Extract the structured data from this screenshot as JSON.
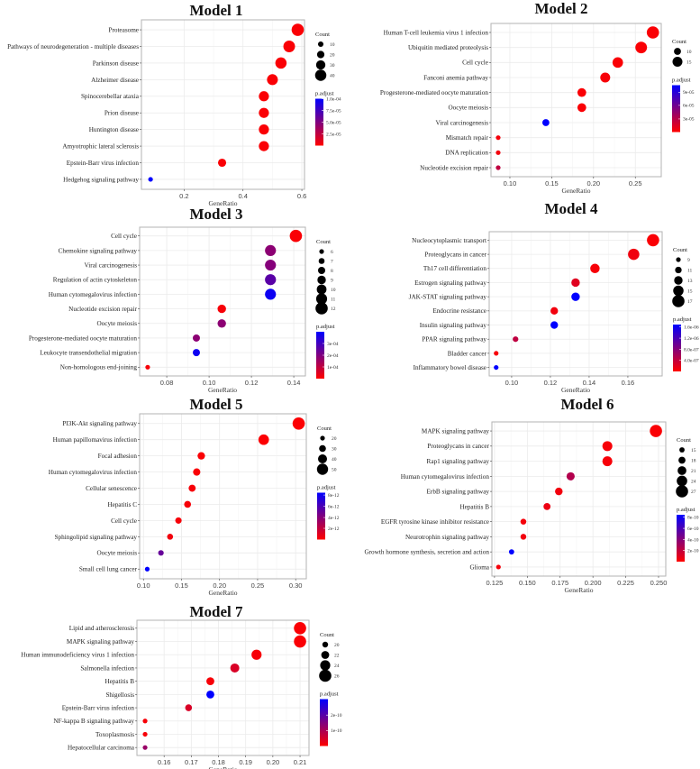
{
  "colors": {
    "low_padj": "#ff0000",
    "high_padj": "#0000ff",
    "grid": "#ebebeb",
    "border": "#b3b3b3"
  },
  "chart_data": [
    {
      "type": "scatter",
      "title": "Model 1",
      "xlabel": "GeneRatio",
      "xlim": [
        0.055,
        0.609
      ],
      "xticks": [
        0.2,
        0.4,
        0.6
      ],
      "xtick_labels": [
        "0.2",
        "0.4",
        "0.6"
      ],
      "size_legend": {
        "title": "Count",
        "values": [
          10,
          20,
          30,
          40
        ],
        "labels": [
          "10",
          "20",
          "30",
          "40"
        ]
      },
      "color_legend": {
        "title": "p.adjust",
        "labels": [
          "1.0e-04",
          "7.5e-05",
          "5.0e-05",
          "2.5e-05"
        ],
        "positions": [
          1.0,
          0.75,
          0.5,
          0.25
        ]
      },
      "count_range": [
        6,
        45
      ],
      "terms": [
        "Proteasome",
        "Pathways of neurodegeneration - multiple diseases",
        "Parkinson disease",
        "Alzheimer disease",
        "Spinocerebellar ataxia",
        "Prion disease",
        "Huntington disease",
        "Amyotrophic lateral sclerosis",
        "Epstein-Barr virus infection",
        "Hedgehog signaling pathway"
      ],
      "gene_ratio": [
        0.586,
        0.557,
        0.529,
        0.5,
        0.471,
        0.471,
        0.471,
        0.471,
        0.329,
        0.086
      ],
      "count": [
        45,
        42,
        40,
        38,
        34,
        34,
        34,
        34,
        24,
        6
      ],
      "padj_scaled": [
        0.02,
        0.02,
        0.02,
        0.02,
        0.02,
        0.02,
        0.02,
        0.02,
        0.02,
        1.0
      ]
    },
    {
      "type": "scatter",
      "title": "Model 2",
      "xlabel": "GeneRatio",
      "xlim": [
        0.0774,
        0.281
      ],
      "xticks": [
        0.1,
        0.15,
        0.2,
        0.25
      ],
      "xtick_labels": [
        "0.10",
        "0.15",
        "0.20",
        "0.25"
      ],
      "size_legend": {
        "title": "Count",
        "values": [
          10,
          15
        ],
        "labels": [
          "10",
          "15"
        ]
      },
      "color_legend": {
        "title": "p.adjust",
        "labels": [
          "9e-05",
          "6e-05",
          "3e-05"
        ],
        "positions": [
          0.85,
          0.57,
          0.28
        ]
      },
      "count_range": [
        6,
        19
      ],
      "terms": [
        "Human T-cell leukemia virus 1 infection",
        "Ubiquitin mediated proteolysis",
        "Cell cycle",
        "Fanconi anemia pathway",
        "Progesterone-mediated oocyte maturation",
        "Oocyte meiosis",
        "Viral carcinogenesis",
        "Mismatch repair",
        "DNA replication",
        "Nucleotide excision repair"
      ],
      "gene_ratio": [
        0.271,
        0.257,
        0.229,
        0.214,
        0.186,
        0.186,
        0.143,
        0.086,
        0.086,
        0.086
      ],
      "count": [
        19,
        18,
        16,
        15,
        13,
        13,
        10,
        6,
        6,
        6
      ],
      "padj_scaled": [
        0.02,
        0.02,
        0.02,
        0.03,
        0.02,
        0.02,
        1.0,
        0.04,
        0.05,
        0.25
      ]
    },
    {
      "type": "scatter",
      "title": "Model 3",
      "xlabel": "GeneRatio",
      "xlim": [
        0.0672,
        0.1455
      ],
      "xticks": [
        0.08,
        0.1,
        0.12,
        0.14
      ],
      "xtick_labels": [
        "0.08",
        "0.10",
        "0.12",
        "0.14"
      ],
      "size_legend": {
        "title": "Count",
        "values": [
          6,
          7,
          8,
          9,
          10,
          11,
          12
        ],
        "labels": [
          "6",
          "7",
          "8",
          "9",
          "10",
          "11",
          "12"
        ]
      },
      "color_legend": {
        "title": "p.adjust",
        "labels": [
          "3e-04",
          "2e-04",
          "1e-04"
        ],
        "positions": [
          0.75,
          0.5,
          0.25
        ]
      },
      "count_range": [
        6,
        12
      ],
      "terms": [
        "Cell cycle",
        "Chemokine signaling pathway",
        "Viral carcinogenesis",
        "Regulation of actin cytoskeleton",
        "Human cytomegalovirus infection",
        "Nucleotide excision repair",
        "Oocyte meiosis",
        "Progesterone-mediated oocyte maturation",
        "Leukocyte transendothelial migration",
        "Non-homologous end-joining"
      ],
      "gene_ratio": [
        0.141,
        0.129,
        0.129,
        0.129,
        0.129,
        0.106,
        0.106,
        0.094,
        0.094,
        0.071
      ],
      "count": [
        12,
        11,
        11,
        11,
        11,
        9,
        9,
        8,
        8,
        6
      ],
      "padj_scaled": [
        0.02,
        0.45,
        0.48,
        0.65,
        0.95,
        0.03,
        0.45,
        0.45,
        0.95,
        0.03
      ]
    },
    {
      "type": "scatter",
      "title": "Model 4",
      "xlabel": "GeneRatio",
      "xlim": [
        0.0884,
        0.1777
      ],
      "xticks": [
        0.1,
        0.12,
        0.14,
        0.16
      ],
      "xtick_labels": [
        "0.10",
        "0.12",
        "0.14",
        "0.16"
      ],
      "size_legend": {
        "title": "Count",
        "values": [
          9,
          11,
          13,
          15,
          17
        ],
        "labels": [
          "9",
          "11",
          "13",
          "15",
          "17"
        ]
      },
      "color_legend": {
        "title": "p.adjust",
        "labels": [
          "1.6e-06",
          "1.2e-06",
          "8.0e-07",
          "4.0e-07"
        ],
        "positions": [
          0.95,
          0.71,
          0.47,
          0.24
        ]
      },
      "count_range": [
        9,
        17
      ],
      "terms": [
        "Nucleocytoplasmic transport",
        "Proteoglycans in cancer",
        "Th17 cell differentiation",
        "Estrogen signaling pathway",
        "JAK-STAT signaling pathway",
        "Endocrine resistance",
        "Insulin signaling pathway",
        "PPAR signaling pathway",
        "Bladder cancer",
        "Inflammatory bowel disease"
      ],
      "gene_ratio": [
        0.173,
        0.163,
        0.143,
        0.133,
        0.133,
        0.122,
        0.122,
        0.102,
        0.092,
        0.092
      ],
      "count": [
        17,
        16,
        14,
        13,
        13,
        12,
        12,
        10,
        9,
        9
      ],
      "padj_scaled": [
        0.02,
        0.06,
        0.03,
        0.12,
        1.0,
        0.05,
        1.0,
        0.25,
        0.03,
        1.0
      ]
    },
    {
      "type": "scatter",
      "title": "Model 5",
      "xlabel": "GeneRatio",
      "xlim": [
        0.095,
        0.314
      ],
      "xticks": [
        0.1,
        0.15,
        0.2,
        0.25,
        0.3
      ],
      "xtick_labels": [
        "0.10",
        "0.15",
        "0.20",
        "0.25",
        "0.30"
      ],
      "size_legend": {
        "title": "Count",
        "values": [
          20,
          30,
          40,
          50
        ],
        "labels": [
          "20",
          "30",
          "40",
          "50"
        ]
      },
      "color_legend": {
        "title": "p.adjust",
        "labels": [
          "8e-12",
          "6e-12",
          "4e-12",
          "2e-12"
        ],
        "positions": [
          0.95,
          0.71,
          0.47,
          0.24
        ]
      },
      "count_range": [
        20,
        55
      ],
      "terms": [
        "PI3K-Akt signaling pathway",
        "Human papillomavirus infection",
        "Focal adhesion",
        "Human cytomegalovirus infection",
        "Cellular senescence",
        "Hepatitis C",
        "Cell cycle",
        "Sphingolipid signaling pathway",
        "Oocyte meiosis",
        "Small cell lung cancer"
      ],
      "gene_ratio": [
        0.304,
        0.258,
        0.176,
        0.17,
        0.164,
        0.158,
        0.146,
        0.135,
        0.123,
        0.105
      ],
      "count": [
        55,
        47,
        33,
        32,
        31,
        30,
        28,
        26,
        24,
        20
      ],
      "padj_scaled": [
        0.01,
        0.01,
        0.02,
        0.02,
        0.03,
        0.03,
        0.03,
        0.05,
        0.6,
        1.0
      ]
    },
    {
      "type": "scatter",
      "title": "Model 6",
      "xlabel": "GeneRatio",
      "xlim": [
        0.123,
        0.2555
      ],
      "xticks": [
        0.125,
        0.15,
        0.175,
        0.2,
        0.225,
        0.25
      ],
      "xtick_labels": [
        "0.125",
        "0.150",
        "0.175",
        "0.200",
        "0.225",
        "0.250"
      ],
      "size_legend": {
        "title": "Count",
        "values": [
          15,
          18,
          21,
          24,
          27
        ],
        "labels": [
          "15",
          "18",
          "21",
          "24",
          "27"
        ]
      },
      "color_legend": {
        "title": "p.adjust",
        "labels": [
          "8e-10",
          "6e-10",
          "4e-10",
          "2e-10"
        ],
        "positions": [
          0.95,
          0.71,
          0.47,
          0.24
        ]
      },
      "count_range": [
        14,
        27
      ],
      "terms": [
        "MAPK signaling pathway",
        "Proteoglycans in cancer",
        "Rap1 signaling pathway",
        "Human cytomegalovirus infection",
        "ErbB signaling pathway",
        "Hepatitis B",
        "EGFR tyrosine kinase inhibitor resistance",
        "Neurotrophin signaling pathway",
        "Growth hormone synthesis, secretion and action",
        "Glioma"
      ],
      "gene_ratio": [
        0.248,
        0.211,
        0.211,
        0.183,
        0.174,
        0.165,
        0.147,
        0.147,
        0.138,
        0.128
      ],
      "count": [
        27,
        23,
        23,
        20,
        19,
        18,
        16,
        16,
        15,
        14
      ],
      "padj_scaled": [
        0.02,
        0.03,
        0.03,
        0.3,
        0.05,
        0.07,
        0.04,
        0.05,
        1.0,
        0.04
      ]
    },
    {
      "type": "scatter",
      "title": "Model 7",
      "xlabel": "GeneRatio",
      "xlim": [
        0.15,
        0.2133
      ],
      "xticks": [
        0.16,
        0.17,
        0.18,
        0.19,
        0.2,
        0.21
      ],
      "xtick_labels": [
        "0.16",
        "0.17",
        "0.18",
        "0.19",
        "0.20",
        "0.21"
      ],
      "size_legend": {
        "title": "Count",
        "values": [
          20,
          22,
          24,
          26
        ],
        "labels": [
          "20",
          "22",
          "24",
          "26"
        ]
      },
      "color_legend": {
        "title": "p.adjust",
        "labels": [
          "2e-10",
          "1e-10"
        ],
        "positions": [
          0.66,
          0.33
        ]
      },
      "count_range": [
        19,
        26
      ],
      "terms": [
        "Lipid and atherosclerosis",
        "MAPK signaling pathway",
        "Human immunodeficiency virus 1 infection",
        "Salmonella infection",
        "Hepatitis B",
        "Shigellosis",
        "Epstein-Barr virus infection",
        "NF-kappa B signaling pathway",
        "Toxoplasmosis",
        "Hepatocellular carcinoma"
      ],
      "gene_ratio": [
        0.21,
        0.21,
        0.194,
        0.186,
        0.177,
        0.177,
        0.169,
        0.153,
        0.153,
        0.153
      ],
      "count": [
        26,
        26,
        24,
        23,
        22,
        22,
        21,
        19,
        19,
        19
      ],
      "padj_scaled": [
        0.02,
        0.02,
        0.03,
        0.15,
        0.03,
        1.0,
        0.15,
        0.03,
        0.03,
        0.4
      ]
    }
  ]
}
